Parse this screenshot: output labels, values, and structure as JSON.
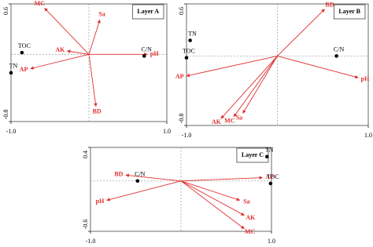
{
  "chart_data": [
    {
      "type": "biplot",
      "title": "Layer A",
      "arrow_color": "#e0302f",
      "point_color": "#000000",
      "xlim": [
        -1,
        1
      ],
      "ylim": [
        -0.8,
        0.6
      ],
      "xticks": [
        {
          "value": -1,
          "label": "-1.0"
        },
        {
          "value": 1,
          "label": "1.0"
        }
      ],
      "yticks": [
        -0.8,
        0.6
      ],
      "arrows": [
        {
          "name": "MC",
          "x": -0.57,
          "y": 0.55
        },
        {
          "name": "Sa",
          "x": 0.14,
          "y": 0.41
        },
        {
          "name": "AK",
          "x": -0.28,
          "y": 0.04
        },
        {
          "name": "AP",
          "x": -0.75,
          "y": -0.17
        },
        {
          "name": "BD",
          "x": 0.09,
          "y": -0.62
        },
        {
          "name": "pH",
          "x": 0.75,
          "y": 0
        }
      ],
      "points": [
        {
          "name": "TOC",
          "x": -0.86,
          "y": 0.02
        },
        {
          "name": "TN",
          "x": -1.0,
          "y": -0.22
        },
        {
          "name": "C/N",
          "x": 0.71,
          "y": -0.02
        }
      ]
    },
    {
      "type": "biplot",
      "title": "Layer B",
      "arrow_color": "#e0302f",
      "point_color": "#000000",
      "xlim": [
        -1,
        1
      ],
      "ylim": [
        -0.8,
        0.6
      ],
      "xticks": [
        {
          "value": -1,
          "label": "-1.0"
        },
        {
          "value": 1,
          "label": "1.0"
        }
      ],
      "yticks": [
        -0.8,
        0.6
      ],
      "arrows": [
        {
          "name": "BD",
          "x": 0.52,
          "y": 0.54
        },
        {
          "name": "AP",
          "x": -1.0,
          "y": -0.23
        },
        {
          "name": "pH",
          "x": 0.89,
          "y": -0.25
        },
        {
          "name": "AK",
          "x": -0.62,
          "y": -0.72
        },
        {
          "name": "Sa",
          "x": -0.38,
          "y": -0.66
        },
        {
          "name": "MC",
          "x": -0.48,
          "y": -0.7
        }
      ],
      "points": [
        {
          "name": "TN",
          "x": -0.96,
          "y": 0.18
        },
        {
          "name": "TOC",
          "x": -1.0,
          "y": -0.02
        },
        {
          "name": "C/N",
          "x": 0.65,
          "y": 0
        }
      ]
    },
    {
      "type": "biplot",
      "title": "Layer C",
      "arrow_color": "#e0302f",
      "point_color": "#000000",
      "xlim": [
        -1,
        1
      ],
      "ylim": [
        -0.6,
        0.4
      ],
      "xticks": [
        {
          "value": -1,
          "label": "-1.0"
        },
        {
          "value": 1,
          "label": "1.0"
        }
      ],
      "yticks": [
        -0.6,
        0.4
      ],
      "arrows": [
        {
          "name": "BD",
          "x": -0.61,
          "y": 0.07
        },
        {
          "name": "AP",
          "x": 0.9,
          "y": 0.04
        },
        {
          "name": "pH",
          "x": -0.82,
          "y": -0.23
        },
        {
          "name": "Sa",
          "x": 0.65,
          "y": -0.23
        },
        {
          "name": "AK",
          "x": 0.7,
          "y": -0.41
        },
        {
          "name": "MC",
          "x": 0.7,
          "y": -0.57
        }
      ],
      "points": [
        {
          "name": "C/N",
          "x": -0.48,
          "y": 0
        },
        {
          "name": "TN",
          "x": 0.95,
          "y": 0.29
        },
        {
          "name": "TOC",
          "x": 0.99,
          "y": -0.03
        }
      ]
    }
  ]
}
